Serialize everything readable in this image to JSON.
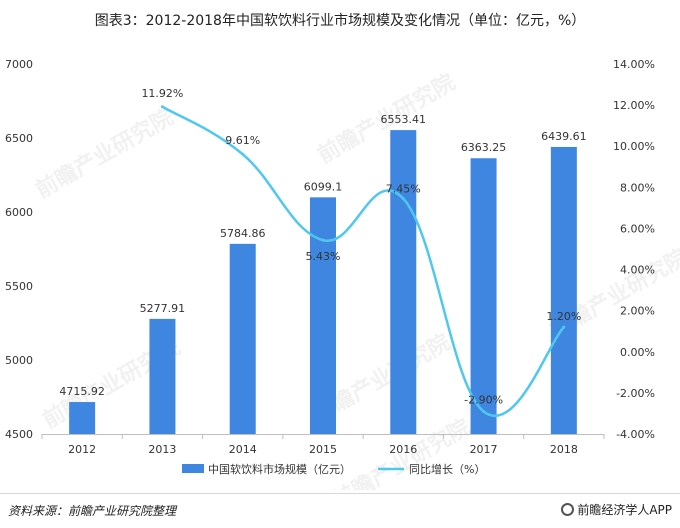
{
  "title": "图表3：2012-2018年中国软饮料行业市场规模及变化情况（单位：亿元，%）",
  "source": "资料来源：前瞻产业研究院整理",
  "brand": "前瞻经济学人APP",
  "watermark": "前瞻产业研究院",
  "colors": {
    "bar": "#3f86e0",
    "line": "#4fc8f0"
  },
  "chart_data": {
    "type": "bar",
    "categories": [
      "2012",
      "2013",
      "2014",
      "2015",
      "2016",
      "2017",
      "2018"
    ],
    "series": [
      {
        "name": "中国软饮料市场规模（亿元）",
        "type": "bar",
        "axis": "left",
        "values": [
          4715.92,
          5277.91,
          5784.86,
          6099.1,
          6553.41,
          6363.25,
          6439.61
        ],
        "labels": [
          "4715.92",
          "5277.91",
          "5784.86",
          "6099.1",
          "6553.41",
          "6363.25",
          "6439.61"
        ]
      },
      {
        "name": "同比增长（%）",
        "type": "line",
        "axis": "right",
        "values": [
          null,
          11.92,
          9.61,
          5.43,
          7.45,
          -2.9,
          1.2
        ],
        "labels": [
          "",
          "11.92%",
          "9.61%",
          "5.43%",
          "7.45%",
          "-2.90%",
          "1.20%"
        ]
      }
    ],
    "y_left": {
      "range": [
        4500,
        7000
      ],
      "ticks": [
        "4500",
        "5000",
        "5500",
        "6000",
        "6500",
        "7000"
      ]
    },
    "y_right": {
      "range": [
        -4,
        14
      ],
      "ticks": [
        "-4.00%",
        "-2.00%",
        "0.00%",
        "2.00%",
        "4.00%",
        "6.00%",
        "8.00%",
        "10.00%",
        "12.00%",
        "14.00%"
      ]
    },
    "grid": false,
    "legend": "bottom"
  }
}
